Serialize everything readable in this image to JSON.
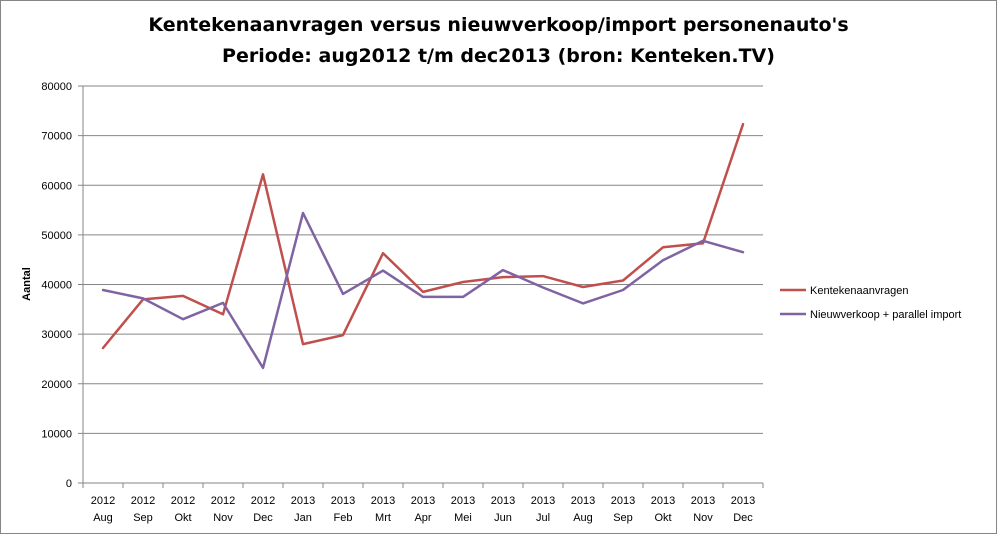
{
  "chart_data": {
    "type": "line",
    "title": "Kentekenaanvragen versus nieuwverkoop/import personenauto's",
    "subtitle": "Periode: aug2012 t/m dec2013 (bron: Kenteken.TV)",
    "ylabel": "Aantal",
    "xlabel": "",
    "ylim": [
      0,
      80000
    ],
    "yticks": [
      0,
      10000,
      20000,
      30000,
      40000,
      50000,
      60000,
      70000,
      80000
    ],
    "grid": true,
    "legend_position": "right",
    "categories": [
      {
        "year": "2012",
        "month": "Aug"
      },
      {
        "year": "2012",
        "month": "Sep"
      },
      {
        "year": "2012",
        "month": "Okt"
      },
      {
        "year": "2012",
        "month": "Nov"
      },
      {
        "year": "2012",
        "month": "Dec"
      },
      {
        "year": "2013",
        "month": "Jan"
      },
      {
        "year": "2013",
        "month": "Feb"
      },
      {
        "year": "2013",
        "month": "Mrt"
      },
      {
        "year": "2013",
        "month": "Apr"
      },
      {
        "year": "2013",
        "month": "Mei"
      },
      {
        "year": "2013",
        "month": "Jun"
      },
      {
        "year": "2013",
        "month": "Jul"
      },
      {
        "year": "2013",
        "month": "Aug"
      },
      {
        "year": "2013",
        "month": "Sep"
      },
      {
        "year": "2013",
        "month": "Okt"
      },
      {
        "year": "2013",
        "month": "Nov"
      },
      {
        "year": "2013",
        "month": "Dec"
      }
    ],
    "series": [
      {
        "name": "Kentekenaanvragen",
        "color": "#c0504d",
        "values": [
          27200,
          37000,
          37700,
          34000,
          62200,
          28000,
          29800,
          46300,
          38500,
          40500,
          41500,
          41700,
          39500,
          40800,
          47500,
          48300,
          72300
        ]
      },
      {
        "name": "Nieuwverkoop + parallel import",
        "color": "#8064a2",
        "values": [
          38900,
          37200,
          33000,
          36300,
          23200,
          54400,
          38100,
          42800,
          37500,
          37500,
          42900,
          39400,
          36200,
          38900,
          44900,
          48800,
          46500
        ]
      }
    ]
  }
}
